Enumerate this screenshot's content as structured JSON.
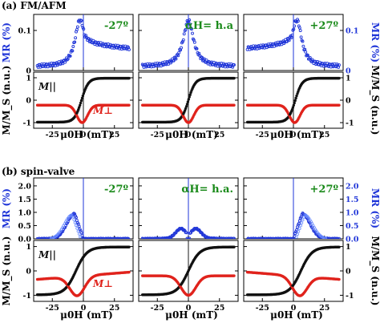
{
  "figure": {
    "sections": [
      {
        "id": "fmafm",
        "title": "(a) FM/AFM",
        "mr_ylim": [
          0,
          0.14
        ],
        "mr_yticks": [
          0,
          0.1
        ],
        "mr_yticklabels": [
          "0",
          "0.1"
        ],
        "mr_ylabel": "MR (%)",
        "m_ylim": [
          -1.25,
          1.25
        ],
        "m_yticks": [
          -1,
          0,
          1
        ],
        "m_yticklabels": [
          "-1",
          "0",
          "1"
        ],
        "m_ylabel": "M/M_S (n.u.)",
        "xlim": [
          -40,
          40
        ],
        "xticks": [
          -25,
          0,
          25
        ],
        "xticklabels": [
          "-25",
          "0",
          "25"
        ],
        "xlabel": "μ0H (mT)",
        "vline_x": 0,
        "panels": [
          {
            "label": "-27º",
            "mr_peak": -3,
            "mr_shape": "single",
            "m_shift": -1.5,
            "m_perp_dip": -1
          },
          {
            "label": "αH= h.a",
            "mr_peak": 0,
            "mr_shape": "single_sym",
            "m_shift": 0,
            "m_perp_dip": 0
          },
          {
            "label": "+27º",
            "mr_peak": 3,
            "mr_shape": "single",
            "m_shift": 1.5,
            "m_perp_dip": 1
          }
        ]
      },
      {
        "id": "spinvalve",
        "title": "(b) spin-valve",
        "mr_ylim": [
          0,
          2.3
        ],
        "mr_yticks": [
          0,
          0.5,
          1.0,
          1.5,
          2.0
        ],
        "mr_yticklabels": [
          "0.0",
          "0.5",
          "1.0",
          "1.5",
          "2.0"
        ],
        "mr_ylabel": "MR (%)",
        "m_ylim": [
          -1.25,
          1.25
        ],
        "m_yticks": [
          -1,
          0,
          1
        ],
        "m_yticklabels": [
          "-1",
          "0",
          "1"
        ],
        "m_ylabel": "M/M_S (n.u.)",
        "xlim": [
          -40,
          40
        ],
        "xticks": [
          -25,
          0,
          25
        ],
        "xticklabels": [
          "-25",
          "0",
          "25"
        ],
        "xlabel": "μ0H (mT)",
        "vline_x": 0,
        "panels": [
          {
            "label": "-27º",
            "mr_peak": -7,
            "mr_shape": "triangle_left",
            "m_shift": -6,
            "m_perp_dip": -5
          },
          {
            "label": "αH= h.a.",
            "mr_peak": 0,
            "mr_shape": "double_small",
            "m_shift": 0,
            "m_perp_dip": 0
          },
          {
            "label": "+27º",
            "mr_peak": 7,
            "mr_shape": "triangle_right",
            "m_shift": 6,
            "m_perp_dip": 5
          }
        ]
      }
    ],
    "labels": {
      "m_par": "M||",
      "m_perp": "M⊥"
    },
    "colors": {
      "mr": "#1f35d8",
      "m_par": "#111111",
      "m_perp": "#e0231c",
      "panel_label": "#1a8a1a"
    }
  },
  "chart_data": [
    {
      "type": "scatter",
      "title": "(a) FM/AFM",
      "xlabel": "μ0H (mT)",
      "ylabel": "MR (%)",
      "xlim": [
        -40,
        40
      ],
      "ylim": [
        0,
        0.14
      ],
      "panels": [
        "-27º",
        "αH= h.a",
        "+27º"
      ],
      "series": [
        {
          "name": "MR -27º",
          "x": [
            -35,
            -20,
            -10,
            -5,
            -3,
            0,
            5,
            15,
            25,
            35
          ],
          "values": [
            0.02,
            0.04,
            0.07,
            0.1,
            0.125,
            0.1,
            0.08,
            0.07,
            0.06,
            0.05
          ]
        },
        {
          "name": "MR h.a",
          "x": [
            -35,
            -20,
            -10,
            -5,
            0,
            5,
            10,
            20,
            35
          ],
          "values": [
            0.01,
            0.02,
            0.04,
            0.08,
            0.125,
            0.08,
            0.04,
            0.02,
            0.01
          ]
        },
        {
          "name": "MR +27º",
          "x": [
            -35,
            -25,
            -15,
            -5,
            0,
            3,
            5,
            10,
            20,
            35
          ],
          "values": [
            0.05,
            0.06,
            0.07,
            0.08,
            0.1,
            0.125,
            0.1,
            0.07,
            0.04,
            0.02
          ]
        }
      ]
    },
    {
      "type": "scatter",
      "title": "(b) spin-valve",
      "xlabel": "μ0H (mT)",
      "ylabel": "MR (%)",
      "xlim": [
        -40,
        40
      ],
      "ylim": [
        0,
        2.3
      ],
      "panels": [
        "-27º",
        "αH= h.a.",
        "+27º"
      ],
      "series": [
        {
          "name": "MR -27º",
          "x": [
            -35,
            -20,
            -12,
            -7,
            -3,
            0,
            35
          ],
          "values": [
            0.0,
            0.2,
            0.6,
            0.95,
            0.5,
            0.0,
            0.0
          ]
        },
        {
          "name": "MR h.a.",
          "x": [
            -35,
            -15,
            -5,
            0,
            5,
            15,
            35
          ],
          "values": [
            0.0,
            0.1,
            0.35,
            0.0,
            0.35,
            0.1,
            0.0
          ]
        },
        {
          "name": "MR +27º",
          "x": [
            -35,
            0,
            3,
            7,
            12,
            20,
            35
          ],
          "values": [
            0.0,
            0.0,
            0.5,
            0.95,
            0.6,
            0.2,
            0.0
          ]
        }
      ]
    },
    {
      "type": "scatter",
      "title": "",
      "xlabel": "μ0H (mT)",
      "ylabel": "M/M_S (n.u.)",
      "xlim": [
        -40,
        40
      ],
      "ylim": [
        -1.25,
        1.25
      ],
      "series": [
        {
          "name": "M||",
          "x": [
            -40,
            -20,
            -10,
            -5,
            0,
            5,
            10,
            20,
            40
          ],
          "values": [
            -1,
            -0.97,
            -0.9,
            -0.6,
            0,
            0.6,
            0.9,
            0.97,
            1
          ]
        },
        {
          "name": "M⊥",
          "x": [
            -40,
            -20,
            -10,
            -5,
            0,
            5,
            10,
            20,
            40
          ],
          "values": [
            -0.25,
            -0.28,
            -0.35,
            -0.6,
            -1,
            -0.6,
            -0.35,
            -0.28,
            -0.25
          ]
        }
      ]
    }
  ]
}
